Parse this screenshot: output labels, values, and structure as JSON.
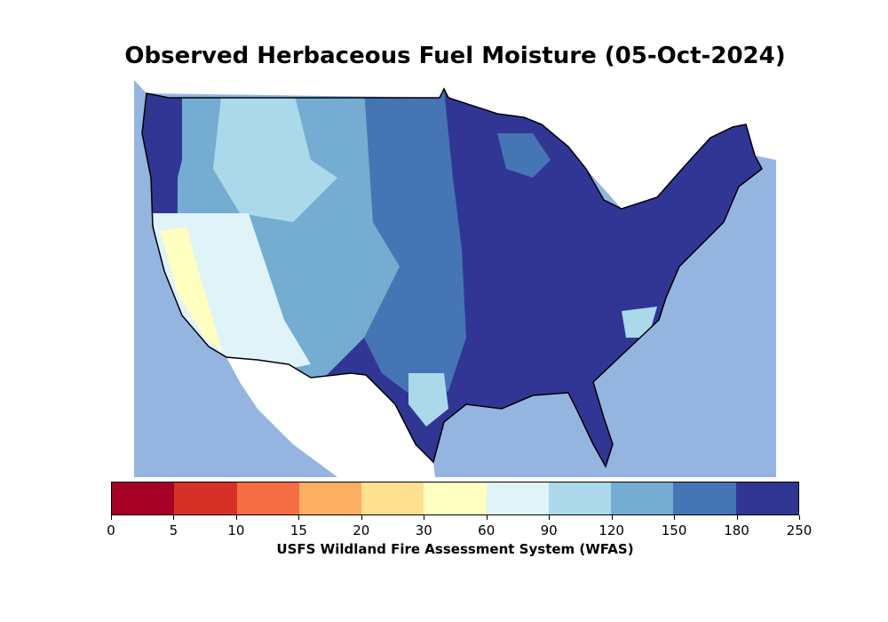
{
  "title": "Observed Herbaceous Fuel Moisture (05-Oct-2024)",
  "colorbar": {
    "label": "USFS Wildland Fire Assessment System (WFAS)",
    "ticks": [
      "0",
      "5",
      "10",
      "15",
      "20",
      "30",
      "60",
      "90",
      "120",
      "150",
      "180",
      "250"
    ],
    "colors": [
      "#a50026",
      "#d73027",
      "#f46d43",
      "#fdae61",
      "#fee090",
      "#ffffbf",
      "#e0f3f8",
      "#abd9e9",
      "#74add1",
      "#4575b4",
      "#313695"
    ]
  },
  "map": {
    "ocean_color": "#95b5e1",
    "land_outside_color": "#ffffff"
  }
}
